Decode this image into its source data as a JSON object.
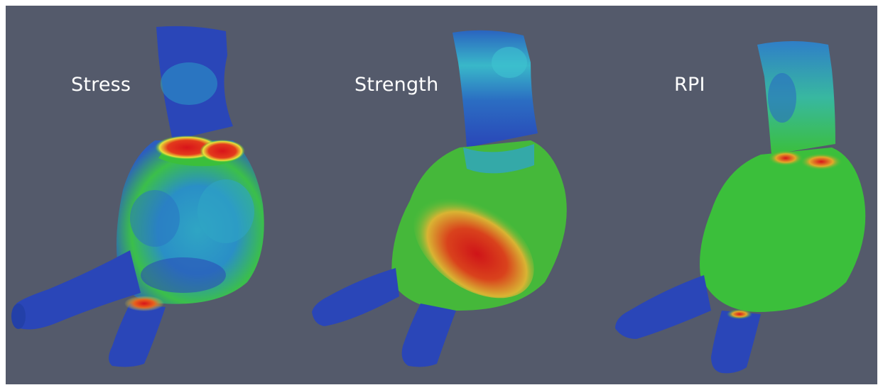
{
  "panels": [
    {
      "id": "stress",
      "label": "Stress"
    },
    {
      "id": "strength",
      "label": "Strength"
    },
    {
      "id": "rpi",
      "label": "RPI"
    }
  ],
  "colors": {
    "background": "#545a6b",
    "low": "#1f3fb0",
    "mid_low": "#2aa3c9",
    "mid": "#3bbf3b",
    "mid_high": "#e8e23a",
    "high": "#d8141a"
  }
}
